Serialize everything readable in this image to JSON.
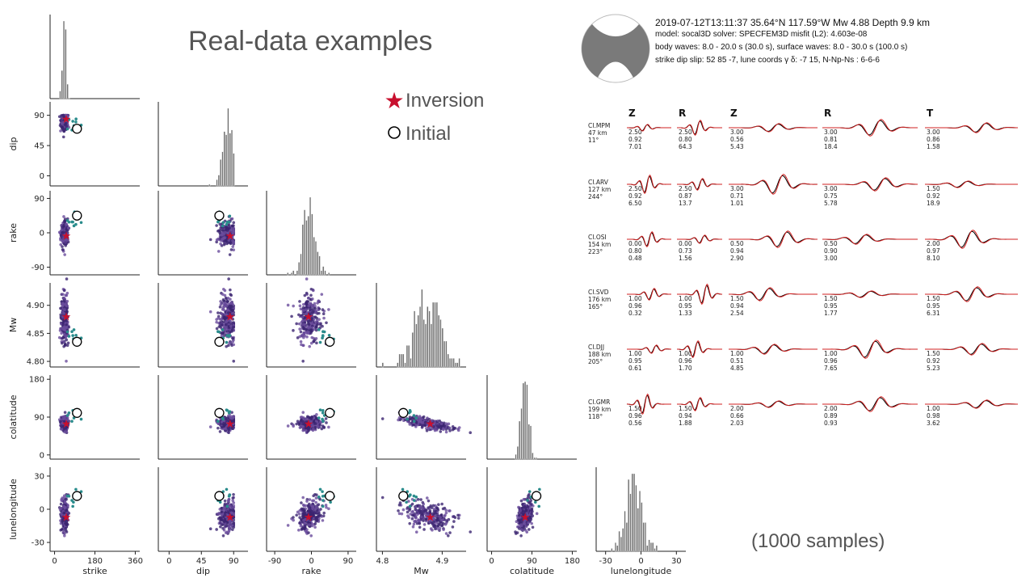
{
  "title": "Real-data examples",
  "legend": {
    "inversion": "Inversion",
    "initial": "Initial"
  },
  "samples_label": "(1000 samples)",
  "colors": {
    "star": "#c8102e",
    "dots_dark": "#3b2470",
    "dots_mid": "#6a4c9c",
    "dots_teal": "#2a8c8c",
    "hist": "#6e6e6e",
    "beach": "#7a7a7a",
    "obs": "#000000",
    "syn": "#d22020"
  },
  "header": {
    "line1": "2019-07-12T13:11:37  35.64°N 117.59°W  Mw 4.88  Depth 9.9 km",
    "line2": "model: socal3D   solver: SPECFEM3D   misfit (L2): 4.603e-08",
    "line3": "body waves:  8.0 - 20.0 s (30.0 s),  surface waves:  8.0 - 30.0 s (100.0 s)",
    "line4": "strike  dip  slip:  52  85  -7,   lune coords γ  δ:  -7  15,   N-Np-Ns : 6-6-6"
  },
  "components": [
    "Z",
    "R",
    "Z",
    "R",
    "T"
  ],
  "stations": [
    {
      "name": "CI.MPM",
      "dist": "47 km",
      "az": "11°",
      "vals": [
        [
          "2.50",
          "0.92",
          "7.01"
        ],
        [
          "2.50",
          "0.80",
          "64.3"
        ],
        [
          "3.00",
          "0.56",
          "5.43"
        ],
        [
          "3.00",
          "0.81",
          "18.4"
        ],
        [
          "3.00",
          "0.86",
          "1.58"
        ]
      ]
    },
    {
      "name": "CI.ARV",
      "dist": "127 km",
      "az": "244°",
      "vals": [
        [
          "2.50",
          "0.92",
          "6.50"
        ],
        [
          "2.50",
          "0.87",
          "13.7"
        ],
        [
          "3.00",
          "0.71",
          "1.01"
        ],
        [
          "3.00",
          "0.75",
          "5.78"
        ],
        [
          "1.50",
          "0.92",
          "18.9"
        ]
      ]
    },
    {
      "name": "CI.OSI",
      "dist": "154 km",
      "az": "223°",
      "vals": [
        [
          "0.00",
          "0.80",
          "0.48"
        ],
        [
          "0.00",
          "0.73",
          "1.56"
        ],
        [
          "0.50",
          "0.94",
          "2.90"
        ],
        [
          "0.50",
          "0.90",
          "3.00"
        ],
        [
          "2.00",
          "0.97",
          "8.10"
        ]
      ]
    },
    {
      "name": "CI.SVD",
      "dist": "176 km",
      "az": "165°",
      "vals": [
        [
          "1.00",
          "0.96",
          "0.32"
        ],
        [
          "1.00",
          "0.95",
          "1.33"
        ],
        [
          "1.50",
          "0.94",
          "2.54"
        ],
        [
          "1.50",
          "0.95",
          "1.77"
        ],
        [
          "1.50",
          "0.95",
          "6.31"
        ]
      ]
    },
    {
      "name": "CI.DJJ",
      "dist": "188 km",
      "az": "205°",
      "vals": [
        [
          "1.00",
          "0.95",
          "0.61"
        ],
        [
          "1.00",
          "0.96",
          "1.70"
        ],
        [
          "1.00",
          "0.51",
          "4.85"
        ],
        [
          "1.00",
          "0.96",
          "7.65"
        ],
        [
          "1.50",
          "0.92",
          "5.23"
        ]
      ]
    },
    {
      "name": "CI.GMR",
      "dist": "199 km",
      "az": "118°",
      "vals": [
        [
          "1.50",
          "0.96",
          "0.56"
        ],
        [
          "1.50",
          "0.94",
          "1.88"
        ],
        [
          "2.00",
          "0.66",
          "2.03"
        ],
        [
          "2.00",
          "0.89",
          "0.93"
        ],
        [
          "1.00",
          "0.98",
          "3.62"
        ]
      ]
    }
  ],
  "chart_data": [
    {
      "type": "scatter",
      "title": "",
      "variables": [
        "strike",
        "dip",
        "rake",
        "Mw",
        "colatitude",
        "lunelongitude"
      ],
      "axis_ranges": {
        "strike": [
          -20,
          380
        ],
        "dip": [
          -15,
          110
        ],
        "rake": [
          -110,
          110
        ],
        "Mw": [
          4.79,
          4.94
        ],
        "colatitude": [
          -10,
          190
        ],
        "lunelongitude": [
          -38,
          38
        ]
      },
      "ticks": {
        "strike": [
          "0",
          "180",
          "360"
        ],
        "dip": [
          "0",
          "45",
          "90"
        ],
        "rake": [
          "-90",
          "0",
          "90"
        ],
        "Mw": [
          "4.8",
          "4.9"
        ],
        "Mw_y": [
          "4.80",
          "4.85",
          "4.90"
        ],
        "colatitude": [
          "0",
          "90",
          "180"
        ],
        "lunelongitude": [
          "-30",
          "0",
          "30"
        ]
      },
      "inversion": {
        "strike": 52,
        "dip": 85,
        "rake": -7,
        "Mw": 4.88,
        "colatitude": 75,
        "lunelongitude": -7
      },
      "initial": {
        "strike": 100,
        "dip": 70,
        "rake": 45,
        "Mw": 4.835,
        "colatitude": 100,
        "lunelongitude": 12
      },
      "sample_spread": {
        "strike": [
          45,
          8
        ],
        "dip": [
          82,
          6
        ],
        "rake": [
          -5,
          15
        ],
        "Mw": [
          4.875,
          0.022
        ],
        "colatitude": [
          75,
          10
        ],
        "lunelongitude": [
          -6,
          8
        ]
      },
      "grid": false,
      "legend": "right"
    },
    {
      "type": "line",
      "title": "",
      "description_source": "waveform fits (observed black, synthetic red)",
      "series": [
        {
          "values": []
        },
        {
          "values": []
        }
      ]
    }
  ]
}
